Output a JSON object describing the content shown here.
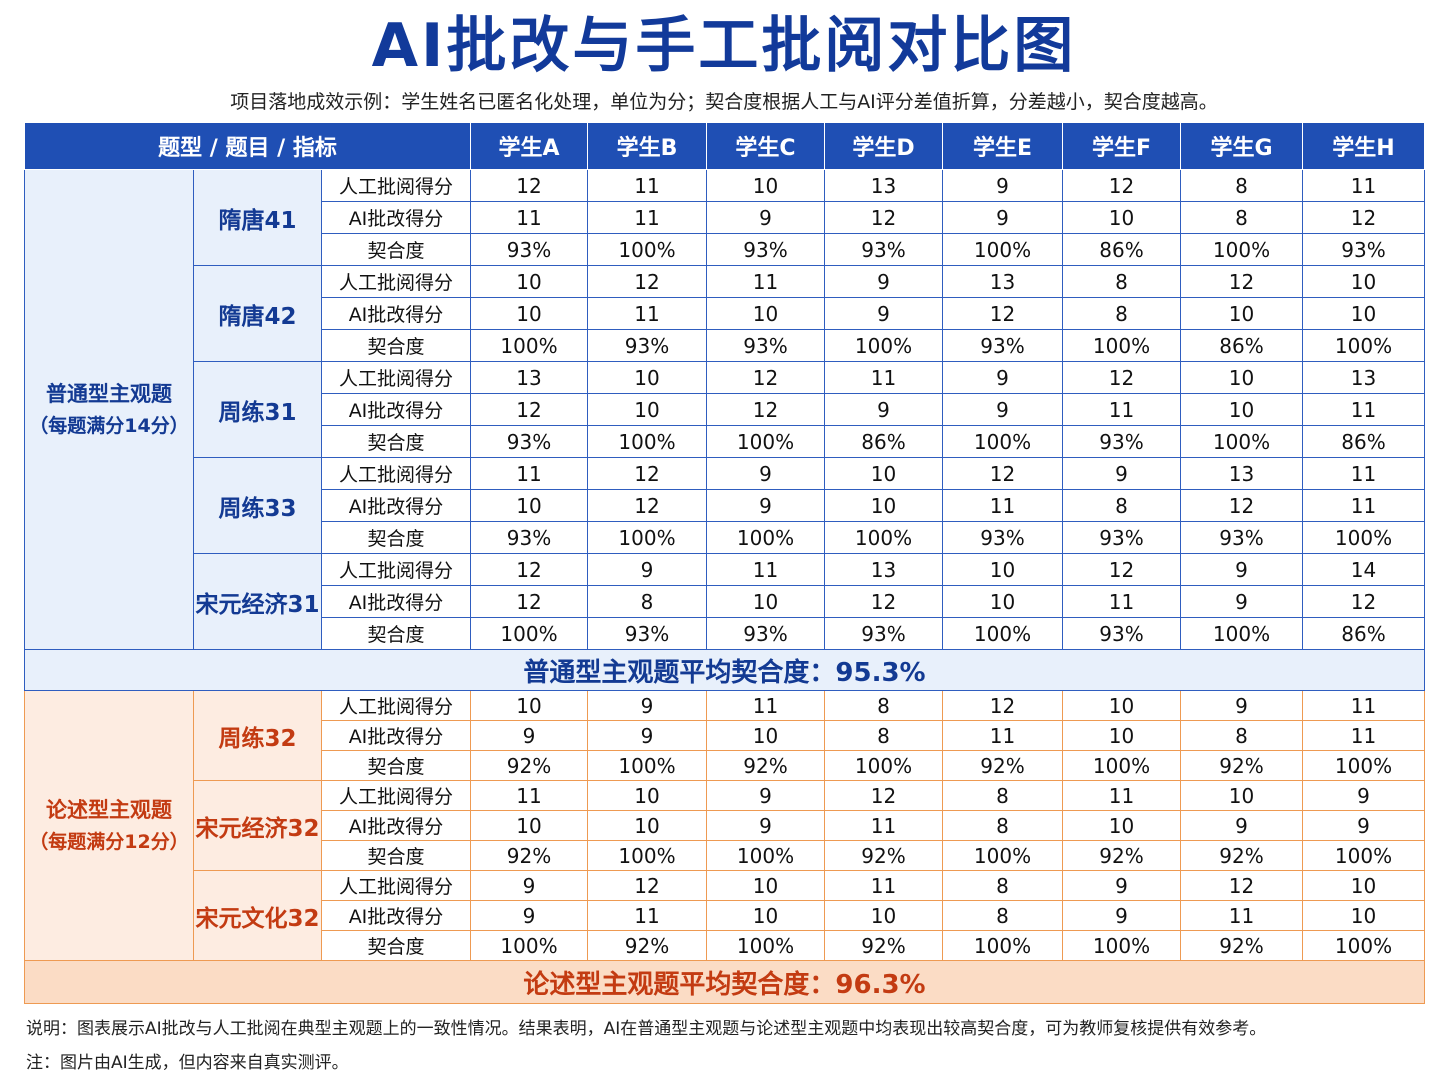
{
  "title": "AI批改与手工批阅对比图",
  "subtitle": "项目落地成效示例：学生姓名已匿名化处理，单位为分；契合度根据人工与AI评分差值折算，分差越小，契合度越高。",
  "colors": {
    "blue_header": "#1f4fb4",
    "blue_text": "#133a93",
    "blue_fill": "#e8f0fb",
    "orange_text": "#c33b12",
    "orange_fill": "#fdece1",
    "orange_border": "#ee9a52"
  },
  "chart_data": {
    "type": "table",
    "header": {
      "label": "题型 / 题目 / 指标",
      "students": [
        "学生A",
        "学生B",
        "学生C",
        "学生D",
        "学生E",
        "学生F",
        "学生G",
        "学生H"
      ]
    },
    "metric_labels": {
      "human": "人工批阅得分",
      "ai": "AI批改得分",
      "match": "契合度"
    },
    "sections": [
      {
        "name": "普通型主观题",
        "note": "（每题满分14分）",
        "theme": "blue",
        "questions": [
          {
            "name": "隋唐41",
            "human": [
              "12",
              "11",
              "10",
              "13",
              "9",
              "12",
              "8",
              "11"
            ],
            "ai": [
              "11",
              "11",
              "9",
              "12",
              "9",
              "10",
              "8",
              "12"
            ],
            "match": [
              "93%",
              "100%",
              "93%",
              "93%",
              "100%",
              "86%",
              "100%",
              "93%"
            ]
          },
          {
            "name": "隋唐42",
            "human": [
              "10",
              "12",
              "11",
              "9",
              "13",
              "8",
              "12",
              "10"
            ],
            "ai": [
              "10",
              "11",
              "10",
              "9",
              "12",
              "8",
              "10",
              "10"
            ],
            "match": [
              "100%",
              "93%",
              "93%",
              "100%",
              "93%",
              "100%",
              "86%",
              "100%"
            ]
          },
          {
            "name": "周练31",
            "human": [
              "13",
              "10",
              "12",
              "11",
              "9",
              "12",
              "10",
              "13"
            ],
            "ai": [
              "12",
              "10",
              "12",
              "9",
              "9",
              "11",
              "10",
              "11"
            ],
            "match": [
              "93%",
              "100%",
              "100%",
              "86%",
              "100%",
              "93%",
              "100%",
              "86%"
            ]
          },
          {
            "name": "周练33",
            "human": [
              "11",
              "12",
              "9",
              "10",
              "12",
              "9",
              "13",
              "11"
            ],
            "ai": [
              "10",
              "12",
              "9",
              "10",
              "11",
              "8",
              "12",
              "11"
            ],
            "match": [
              "93%",
              "100%",
              "100%",
              "100%",
              "93%",
              "93%",
              "93%",
              "100%"
            ]
          },
          {
            "name": "宋元经济31",
            "human": [
              "12",
              "9",
              "11",
              "13",
              "10",
              "12",
              "9",
              "14"
            ],
            "ai": [
              "12",
              "8",
              "10",
              "12",
              "10",
              "11",
              "9",
              "12"
            ],
            "match": [
              "100%",
              "93%",
              "93%",
              "93%",
              "100%",
              "93%",
              "100%",
              "86%"
            ]
          }
        ],
        "average": "普通型主观题平均契合度：95.3%"
      },
      {
        "name": "论述型主观题",
        "note": "（每题满分12分）",
        "theme": "orange",
        "questions": [
          {
            "name": "周练32",
            "human": [
              "10",
              "9",
              "11",
              "8",
              "12",
              "10",
              "9",
              "11"
            ],
            "ai": [
              "9",
              "9",
              "10",
              "8",
              "11",
              "10",
              "8",
              "11"
            ],
            "match": [
              "92%",
              "100%",
              "92%",
              "100%",
              "92%",
              "100%",
              "92%",
              "100%"
            ]
          },
          {
            "name": "宋元经济32",
            "human": [
              "11",
              "10",
              "9",
              "12",
              "8",
              "11",
              "10",
              "9"
            ],
            "ai": [
              "10",
              "10",
              "9",
              "11",
              "8",
              "10",
              "9",
              "9"
            ],
            "match": [
              "92%",
              "100%",
              "100%",
              "92%",
              "100%",
              "92%",
              "92%",
              "100%"
            ]
          },
          {
            "name": "宋元文化32",
            "human": [
              "9",
              "12",
              "10",
              "11",
              "8",
              "9",
              "12",
              "10"
            ],
            "ai": [
              "9",
              "11",
              "10",
              "10",
              "8",
              "9",
              "11",
              "10"
            ],
            "match": [
              "100%",
              "92%",
              "100%",
              "92%",
              "100%",
              "100%",
              "92%",
              "100%"
            ]
          }
        ],
        "average": "论述型主观题平均契合度：96.3%"
      }
    ]
  },
  "footer": {
    "note1": "说明：图表展示AI批改与人工批阅在典型主观题上的一致性情况。结果表明，AI在普通型主观题与论述型主观题中均表现出较高契合度，可为教师复核提供有效参考。",
    "note2": "注：图片由AI生成，但内容来自真实测评。"
  }
}
